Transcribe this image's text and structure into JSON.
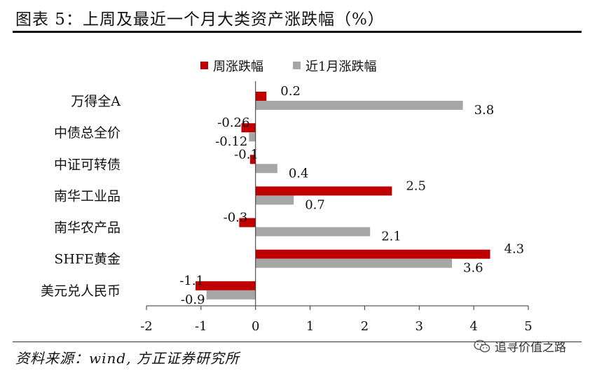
{
  "header": {
    "title": "图表 5：上周及最近一个月大类资产涨跌幅（%）"
  },
  "footer": {
    "source": "资料来源：wind, 方正证券研究所",
    "watermark": "追寻价值之路"
  },
  "colors": {
    "weekly": "#C00000",
    "monthly": "#A6A6A6"
  },
  "icons": {
    "watermark": "wechat-icon"
  },
  "chart_data": {
    "type": "bar",
    "orientation": "horizontal",
    "categories": [
      "万得全A",
      "中债总全价",
      "中证可转债",
      "南华工业品",
      "南华农产品",
      "SHFE黄金",
      "美元兑人民币"
    ],
    "series": [
      {
        "name": "周涨跌幅",
        "values": [
          0.2,
          -0.26,
          -0.1,
          2.5,
          -0.3,
          4.3,
          -1.1
        ],
        "labels": [
          "0.2",
          "-0.26",
          "-0.1",
          "2.5",
          "-0.3",
          "4.3",
          "-1.1"
        ]
      },
      {
        "name": "近1月涨跌幅",
        "values": [
          3.8,
          -0.12,
          0.4,
          0.7,
          2.1,
          3.6,
          -0.9
        ],
        "labels": [
          "3.8",
          "-0.12",
          "0.4",
          "0.7",
          "2.1",
          "3.6",
          "-0.9"
        ]
      }
    ],
    "xlim": [
      -2,
      5
    ],
    "xticks": [
      "-2",
      "-1",
      "0",
      "1",
      "2",
      "3",
      "4",
      "5"
    ],
    "legend": "top",
    "grid": false
  }
}
